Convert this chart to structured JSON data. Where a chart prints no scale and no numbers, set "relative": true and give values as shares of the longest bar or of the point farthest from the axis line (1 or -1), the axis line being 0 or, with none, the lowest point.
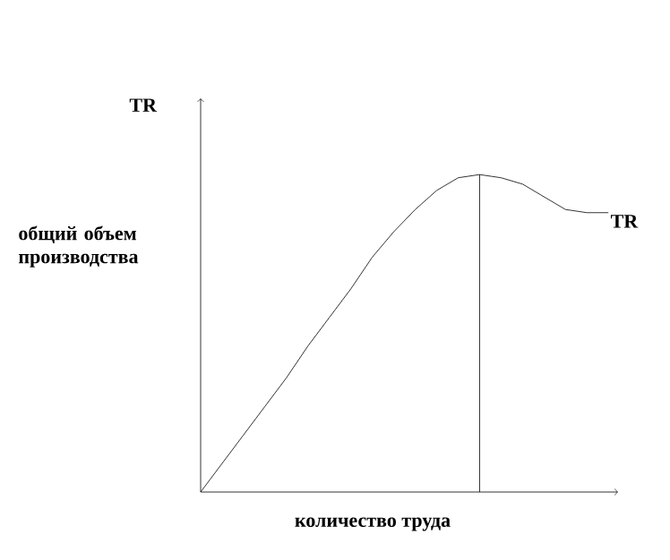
{
  "chart_data": {
    "type": "line",
    "relative": true,
    "ylabel": "TR",
    "xlabel": "количество труда",
    "annotations": [
      "общий объем производства"
    ],
    "categories": [
      null,
      null,
      null,
      null,
      null,
      null,
      null,
      null,
      null,
      null,
      null,
      null,
      null,
      null,
      null,
      null,
      null,
      null,
      null,
      null
    ],
    "series": [
      {
        "name": "TR",
        "color": "#000000",
        "values": [
          0,
          0.09,
          0.18,
          0.27,
          0.36,
          0.46,
          0.55,
          0.64,
          0.74,
          0.82,
          0.89,
          0.95,
          0.99,
          1,
          0.99,
          0.97,
          0.93,
          0.89,
          0.88,
          0.88
        ]
      }
    ]
  }
}
